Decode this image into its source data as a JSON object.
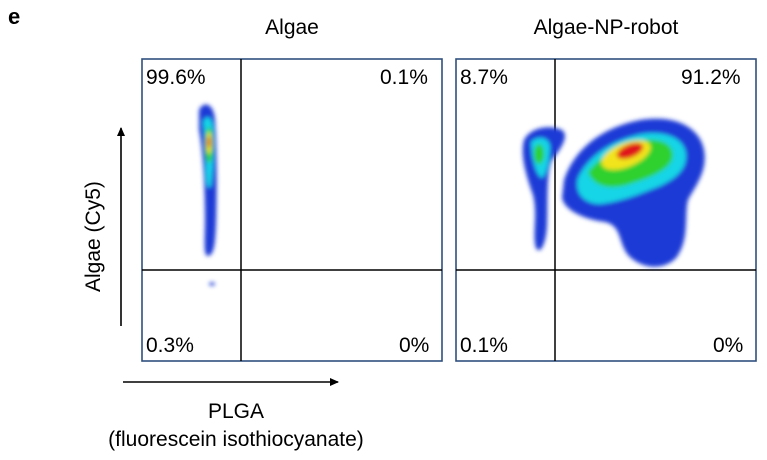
{
  "panel_letter": "e",
  "y_axis_label": "Algae (Cy5)",
  "x_axis_label_line1": "PLGA",
  "x_axis_label_line2": "(fluorescein isothiocyanate)",
  "chart_data": [
    {
      "type": "heatmap",
      "title": "Algae",
      "xlabel": "PLGA (fluorescein isothiocyanate)",
      "ylabel": "Algae (Cy5)",
      "quadrants": {
        "top_left": "99.6%",
        "top_right": "0.1%",
        "bottom_left": "0.3%",
        "bottom_right": "0%"
      }
    },
    {
      "type": "heatmap",
      "title": "Algae-NP-robot",
      "xlabel": "PLGA (fluorescein isothiocyanate)",
      "ylabel": "Algae (Cy5)",
      "quadrants": {
        "top_left": "8.7%",
        "top_right": "91.2%",
        "bottom_left": "0.1%",
        "bottom_right": "0%"
      }
    }
  ],
  "colors": {
    "frame": "#2f4f7f",
    "density_low": "#1f3bd6",
    "density_mid": "#19d5e6",
    "density_mid2": "#2fd12f",
    "density_high": "#f2e41a",
    "density_peak": "#e0161b"
  }
}
